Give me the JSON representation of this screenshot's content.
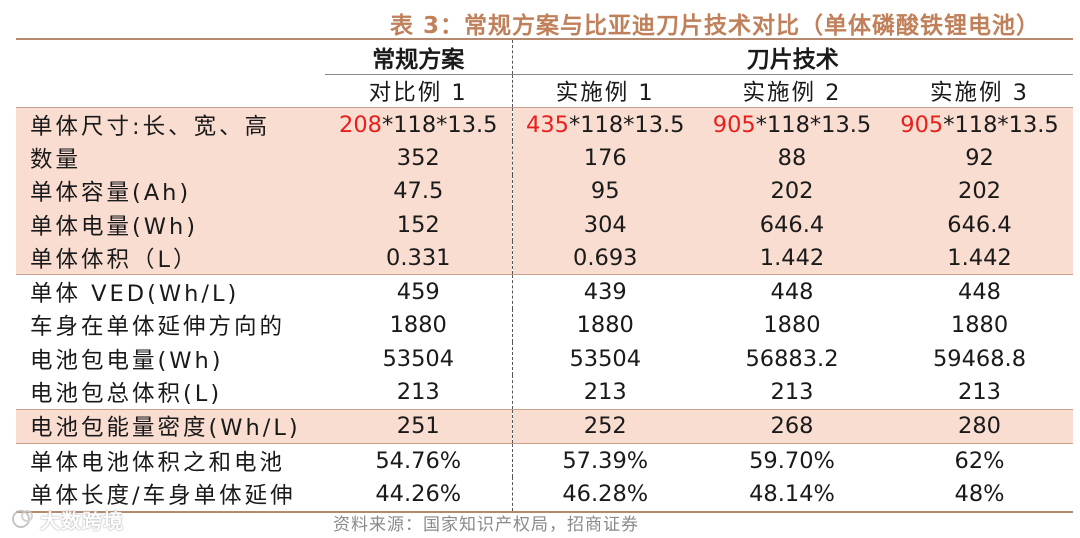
{
  "title": "表 3：常规方案与比亚迪刀片技术对比（单体磷酸铁锂电池）",
  "header": {
    "scheme_conventional": "常规方案",
    "scheme_blade": "刀片技术",
    "columns": [
      "对比例 1",
      "实施例 1",
      "实施例 2",
      "实施例 3"
    ]
  },
  "rows": [
    {
      "label": "单体尺寸:长、宽、高",
      "values": [
        {
          "highlight": "208",
          "rest": "*118*13.5"
        },
        {
          "highlight": "435",
          "rest": "*118*13.5"
        },
        {
          "highlight": "905",
          "rest": "*118*13.5"
        },
        {
          "highlight": "905",
          "rest": "*118*13.5"
        }
      ]
    },
    {
      "label": "数量",
      "values": [
        "352",
        "176",
        "88",
        "92"
      ]
    },
    {
      "label": "单体容量(Ah)",
      "values": [
        "47.5",
        "95",
        "202",
        "202"
      ]
    },
    {
      "label": "单体电量(Wh)",
      "values": [
        "152",
        "304",
        "646.4",
        "646.4"
      ]
    },
    {
      "label": "单体体积（L）",
      "values": [
        "0.331",
        "0.693",
        "1.442",
        "1.442"
      ]
    },
    {
      "label": "单体 VED(Wh/L)",
      "values": [
        "459",
        "439",
        "448",
        "448"
      ]
    },
    {
      "label": "车身在单体延伸方向的",
      "values": [
        "1880",
        "1880",
        "1880",
        "1880"
      ]
    },
    {
      "label": "电池包电量(Wh)",
      "values": [
        "53504",
        "53504",
        "56883.2",
        "59468.8"
      ]
    },
    {
      "label": "电池包总体积(L)",
      "values": [
        "213",
        "213",
        "213",
        "213"
      ]
    },
    {
      "label": "电池包能量密度(Wh/L)",
      "values": [
        "251",
        "252",
        "268",
        "280"
      ]
    },
    {
      "label": "单体电池体积之和电池",
      "values": [
        "54.76%",
        "57.39%",
        "59.70%",
        "62%"
      ]
    },
    {
      "label": "单体长度/车身单体延伸",
      "values": [
        "44.26%",
        "46.28%",
        "48.14%",
        "48%"
      ]
    }
  ],
  "source": "资料来源：国家知识产权局，招商证券",
  "watermark": "大数跨境",
  "colors": {
    "title": "#c0805a",
    "highlight_row": "#f9ddd1",
    "red_value": "#e8201c",
    "rule": "#b58a70"
  }
}
